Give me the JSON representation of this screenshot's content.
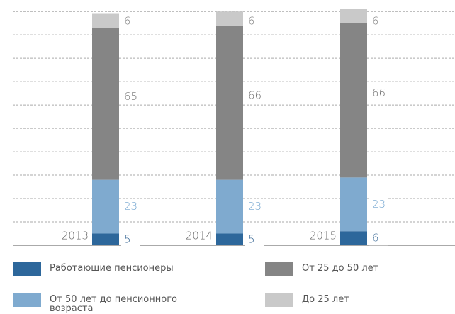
{
  "chart_data": {
    "type": "stacked_bar",
    "categories": [
      "2013",
      "2014",
      "2015"
    ],
    "series": [
      {
        "name": "Работающие пенсионеры",
        "color": "#2d679b",
        "label_color": "#2d5f8f",
        "values": [
          5,
          5,
          6
        ]
      },
      {
        "name": "От 50 лет до пенсионного возраста",
        "color": "#7faacf",
        "label_color": "#6fa3cf",
        "values": [
          23,
          23,
          23
        ]
      },
      {
        "name": "От 25 до 50 лет",
        "color": "#858585",
        "label_color": "#6b6b6b",
        "values": [
          65,
          66,
          66
        ]
      },
      {
        "name": "До 25 лет",
        "color": "#c9c9c9",
        "label_color": "#6b6b6b",
        "values": [
          6,
          6,
          6
        ]
      }
    ],
    "ylim": [
      0,
      104
    ],
    "yticks": [
      0,
      10,
      20,
      30,
      40,
      50,
      60,
      70,
      80,
      90,
      100
    ],
    "grid": true
  }
}
